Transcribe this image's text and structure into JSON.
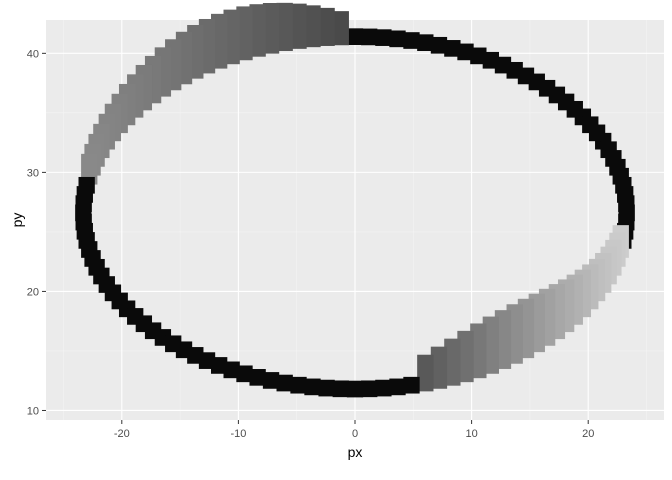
{
  "chart_data": {
    "type": "scatter",
    "title": "",
    "xlabel": "px",
    "ylabel": "py",
    "xlim": [
      -26.5,
      26.5
    ],
    "ylim": [
      9.2,
      42.8
    ],
    "x_ticks": [
      -20,
      -10,
      0,
      10,
      20
    ],
    "x_tick_labels": [
      "-20",
      "-10",
      "0",
      "10",
      "20"
    ],
    "y_ticks": [
      10,
      20,
      30,
      40
    ],
    "y_tick_labels": [
      "10",
      "20",
      "30",
      "40"
    ],
    "grid": true,
    "legend": "none",
    "colors": {
      "panel_background": "#ebebeb",
      "grid_major": "#ffffff",
      "grid_minor": "#f4f4f4",
      "tick_mark": "#333333",
      "ring_dark": "#0a0a0a"
    },
    "description_of_marks": "Thick closed elliptical ring of stacked square tiles; the upper-left and lower-right arcs are extruded vertically and shaded in grey gradients",
    "ring": {
      "center": [
        0,
        26.6
      ],
      "radius_x": 23.3,
      "radius_y": 14.8,
      "tile_size": 1.4,
      "tilt_deg": 0
    },
    "extrusions": [
      {
        "name": "upper-left",
        "from_x": -23,
        "to_x": 0,
        "max_height": 3.2,
        "shade_light": "#9a9a9a",
        "shade_dark": "#2a2a2a"
      },
      {
        "name": "lower-right",
        "from_x": 5,
        "to_x": 23,
        "max_height": 3.6,
        "shade_light": "#d6d6d6",
        "shade_dark": "#3a3a3a"
      }
    ]
  }
}
